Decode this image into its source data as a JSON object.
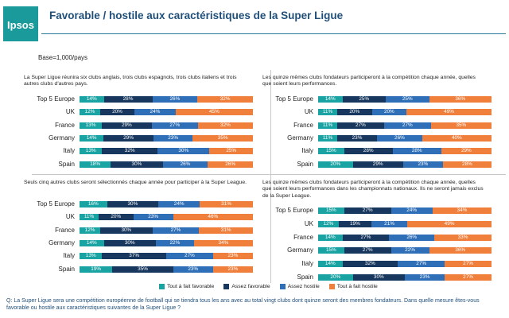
{
  "header": {
    "logo_text": "Ipsos",
    "title": "Favorable  / hostile aux caractéristiques  de la Super Ligue",
    "base": "Base=1,000/pays"
  },
  "colors": {
    "tout_a_fait_favorable": "#1aa3a3",
    "assez_favorable": "#17375e",
    "assez_hostile": "#2e6fb7",
    "tout_a_fait_hostile": "#f07f3c",
    "accent": "#1f4f7a",
    "logo": "#1a9a9a"
  },
  "legend": [
    "Tout à fait favorable",
    "Assez favorable",
    "Assez hostile",
    "Tout à fait hostile"
  ],
  "question": "Q: La Super Ligue sera une compétition européenne de football qui se tiendra tous les ans avec au total vingt clubs dont quinze seront des membres fondateurs. Dans quelle mesure êtes-vous favorable ou hostile aux caractéristiques  suivantes de la Super Ligue ?",
  "chart_data": [
    {
      "type": "bar",
      "stacked": true,
      "orientation": "horizontal",
      "description": "La Super Ligue réunira six clubs anglais, trois clubs espagnols, trois clubs italiens et trois autres clubs d'autres pays.",
      "categories": [
        "Top 5 Europe",
        "UK",
        "France",
        "Germany",
        "Italy",
        "Spain"
      ],
      "series": [
        {
          "name": "Tout à fait favorable",
          "values": [
            14,
            12,
            13,
            14,
            13,
            18
          ]
        },
        {
          "name": "Assez favorable",
          "values": [
            28,
            20,
            29,
            29,
            32,
            30
          ]
        },
        {
          "name": "Assez hostile",
          "values": [
            26,
            24,
            27,
            23,
            30,
            26
          ]
        },
        {
          "name": "Tout à fait hostile",
          "values": [
            32,
            45,
            32,
            35,
            25,
            26
          ]
        }
      ]
    },
    {
      "type": "bar",
      "stacked": true,
      "orientation": "horizontal",
      "description": "Les quinze mêmes clubs fondateurs participeront à la compétition chaque année, quelles que soient leurs performances.",
      "categories": [
        "Top 5 Europe",
        "UK",
        "France",
        "Germany",
        "Italy",
        "Spain"
      ],
      "series": [
        {
          "name": "Tout à fait favorable",
          "values": [
            14,
            11,
            11,
            11,
            15,
            20
          ]
        },
        {
          "name": "Assez favorable",
          "values": [
            25,
            20,
            27,
            23,
            28,
            29
          ]
        },
        {
          "name": "Assez hostile",
          "values": [
            25,
            20,
            27,
            26,
            28,
            23
          ]
        },
        {
          "name": "Tout à fait hostile",
          "values": [
            36,
            49,
            35,
            40,
            29,
            28
          ]
        }
      ]
    },
    {
      "type": "bar",
      "stacked": true,
      "orientation": "horizontal",
      "description": "Seuls cinq autres clubs seront sélectionnés chaque année pour participer à la Super League.",
      "categories": [
        "Top 5 Europe",
        "UK",
        "France",
        "Germany",
        "Italy",
        "Spain"
      ],
      "series": [
        {
          "name": "Tout à fait favorable",
          "values": [
            16,
            11,
            12,
            14,
            13,
            19
          ]
        },
        {
          "name": "Assez favorable",
          "values": [
            30,
            20,
            30,
            30,
            37,
            35
          ]
        },
        {
          "name": "Assez hostile",
          "values": [
            24,
            23,
            27,
            22,
            27,
            23
          ]
        },
        {
          "name": "Tout à fait hostile",
          "values": [
            31,
            46,
            31,
            34,
            23,
            23
          ]
        }
      ]
    },
    {
      "type": "bar",
      "stacked": true,
      "orientation": "horizontal",
      "description": "Les quinze mêmes clubs fondateurs participeront à la compétition chaque année, quelles que soient leurs performances dans les championnats nationaux. Ils ne seront jamais exclus de la Super League.",
      "categories": [
        "Top 5 Europe",
        "UK",
        "France",
        "Germany",
        "Italy",
        "Spain"
      ],
      "series": [
        {
          "name": "Tout à fait favorable",
          "values": [
            15,
            12,
            14,
            15,
            14,
            20
          ]
        },
        {
          "name": "Assez favorable",
          "values": [
            27,
            19,
            27,
            27,
            32,
            30
          ]
        },
        {
          "name": "Assez hostile",
          "values": [
            24,
            21,
            26,
            22,
            27,
            23
          ]
        },
        {
          "name": "Tout à fait hostile",
          "values": [
            34,
            49,
            33,
            36,
            27,
            27
          ]
        }
      ]
    }
  ]
}
